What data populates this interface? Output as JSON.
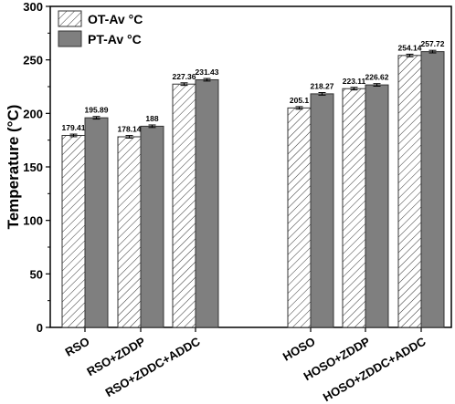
{
  "chart_data": {
    "type": "bar",
    "ylabel": "Temperature (°C)",
    "ylim": [
      0,
      300
    ],
    "yticks": [
      0,
      50,
      100,
      150,
      200,
      250,
      300
    ],
    "categories": [
      "RSO",
      "RSO+ZDDP",
      "RSO+ZDDC+ADDC",
      "HOSO",
      "HOSO+ZDDP",
      "HOSO+ZDDC+ADDC"
    ],
    "series": [
      {
        "name": "OT-Av °C",
        "fill": "hatched",
        "values": [
          179.41,
          178.14,
          227.36,
          205.1,
          223.11,
          254.14
        ],
        "labels": [
          "179.41",
          "178.14",
          "227.36",
          "205.1",
          "223.11",
          "254.14"
        ]
      },
      {
        "name": "PT-Av °C",
        "fill": "#7f7f7f",
        "values": [
          195.89,
          188,
          231.43,
          218.27,
          226.62,
          257.72
        ],
        "labels": [
          "195.89",
          "188",
          "231.43",
          "218.27",
          "226.62",
          "257.72"
        ]
      }
    ],
    "grid": false,
    "legend_position": "top-left"
  }
}
